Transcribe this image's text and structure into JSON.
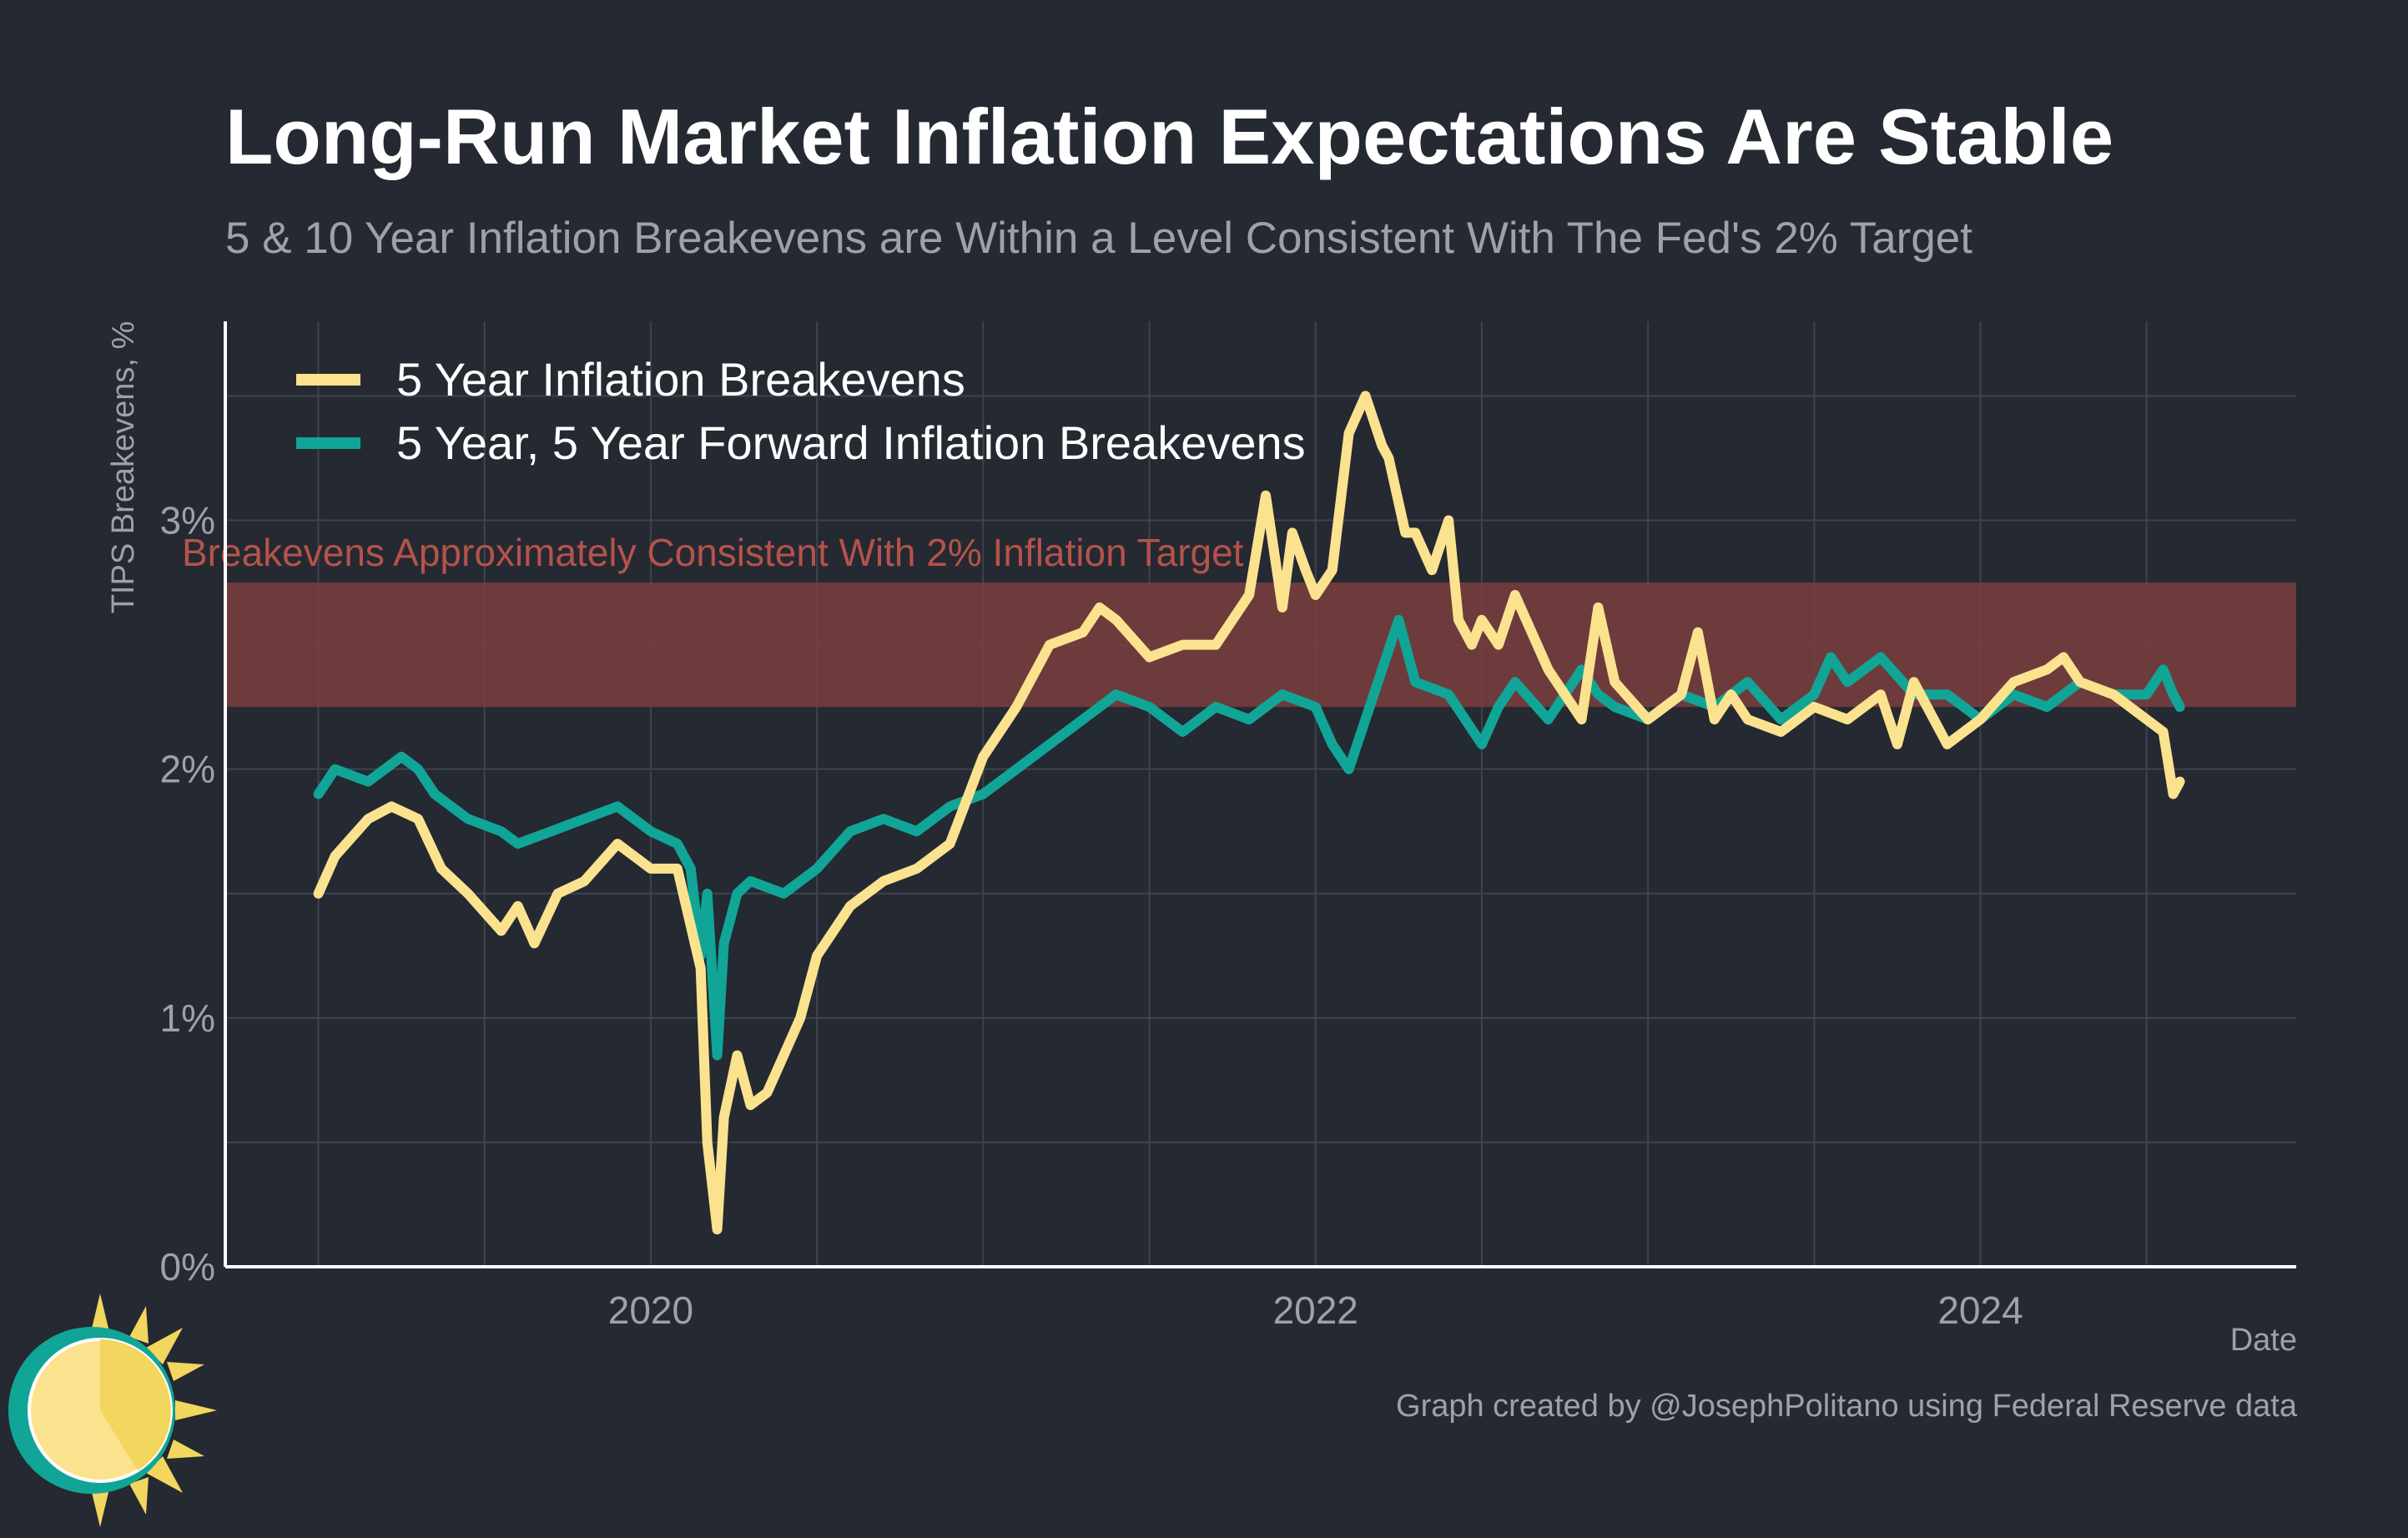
{
  "title": "Long-Run Market Inflation Expectations Are Stable",
  "subtitle": "5 & 10 Year Inflation Breakevens are Within a Level Consistent With The Fed's 2% Target",
  "credit": "Graph created by @JosephPolitano using Federal Reserve data",
  "colors": {
    "background": "#252932",
    "grid": "#3e434d",
    "axis": "#ffffff",
    "band": "#7a3e3e",
    "band_label": "#b5534a",
    "series_5y": "#fbe28e",
    "series_5y5y": "#10a597"
  },
  "chart_data": {
    "type": "line",
    "title": "Long-Run Market Inflation Expectations Are Stable",
    "xlabel": "Date",
    "ylabel": "TIPS Breakevens, %",
    "xlim": [
      2018.72,
      2024.95
    ],
    "ylim": [
      0,
      3.8
    ],
    "xticks": [
      2020,
      2022,
      2024
    ],
    "xtick_labels": [
      "2020",
      "2022",
      "2024"
    ],
    "yticks": [
      0,
      1,
      2,
      3
    ],
    "ytick_labels": [
      "0%",
      "1%",
      "2%",
      "3%"
    ],
    "grid": true,
    "legend_position": "top-left",
    "band": {
      "y_range": [
        2.25,
        2.75
      ],
      "label": "Breakevens Approximately Consistent With 2% Inflation Target"
    },
    "series": [
      {
        "name": "5 Year Inflation Breakevens",
        "x": [
          2019.0,
          2019.05,
          2019.15,
          2019.22,
          2019.3,
          2019.37,
          2019.45,
          2019.55,
          2019.6,
          2019.65,
          2019.72,
          2019.8,
          2019.9,
          2020.0,
          2020.08,
          2020.15,
          2020.17,
          2020.2,
          2020.22,
          2020.26,
          2020.3,
          2020.35,
          2020.4,
          2020.45,
          2020.5,
          2020.6,
          2020.7,
          2020.8,
          2020.9,
          2021.0,
          2021.1,
          2021.2,
          2021.3,
          2021.35,
          2021.4,
          2021.5,
          2021.6,
          2021.7,
          2021.8,
          2021.85,
          2021.9,
          2021.93,
          2021.97,
          2022.0,
          2022.05,
          2022.1,
          2022.15,
          2022.2,
          2022.22,
          2022.27,
          2022.3,
          2022.35,
          2022.4,
          2022.43,
          2022.47,
          2022.5,
          2022.55,
          2022.6,
          2022.65,
          2022.7,
          2022.8,
          2022.85,
          2022.9,
          2023.0,
          2023.1,
          2023.15,
          2023.2,
          2023.25,
          2023.3,
          2023.4,
          2023.5,
          2023.6,
          2023.7,
          2023.75,
          2023.8,
          2023.9,
          2024.0,
          2024.1,
          2024.2,
          2024.25,
          2024.3,
          2024.4,
          2024.5,
          2024.55,
          2024.58,
          2024.6
        ],
        "values": [
          1.5,
          1.65,
          1.8,
          1.85,
          1.8,
          1.6,
          1.5,
          1.35,
          1.45,
          1.3,
          1.5,
          1.55,
          1.7,
          1.6,
          1.6,
          1.2,
          0.5,
          0.15,
          0.6,
          0.85,
          0.65,
          0.7,
          0.85,
          1.0,
          1.25,
          1.45,
          1.55,
          1.6,
          1.7,
          2.05,
          2.25,
          2.5,
          2.55,
          2.65,
          2.6,
          2.45,
          2.5,
          2.5,
          2.7,
          3.1,
          2.65,
          2.95,
          2.8,
          2.7,
          2.8,
          3.35,
          3.5,
          3.3,
          3.25,
          2.95,
          2.95,
          2.8,
          3.0,
          2.6,
          2.5,
          2.6,
          2.5,
          2.7,
          2.55,
          2.4,
          2.2,
          2.65,
          2.35,
          2.2,
          2.3,
          2.55,
          2.2,
          2.3,
          2.2,
          2.15,
          2.25,
          2.2,
          2.3,
          2.1,
          2.35,
          2.1,
          2.2,
          2.35,
          2.4,
          2.45,
          2.35,
          2.3,
          2.2,
          2.15,
          1.9,
          1.95
        ]
      },
      {
        "name": "5 Year, 5 Year Forward Inflation Breakevens",
        "x": [
          2019.0,
          2019.05,
          2019.15,
          2019.25,
          2019.3,
          2019.35,
          2019.45,
          2019.55,
          2019.6,
          2019.7,
          2019.8,
          2019.9,
          2020.0,
          2020.08,
          2020.12,
          2020.15,
          2020.17,
          2020.2,
          2020.22,
          2020.26,
          2020.3,
          2020.4,
          2020.5,
          2020.6,
          2020.7,
          2020.8,
          2020.9,
          2021.0,
          2021.1,
          2021.2,
          2021.3,
          2021.4,
          2021.5,
          2021.6,
          2021.7,
          2021.8,
          2021.9,
          2022.0,
          2022.05,
          2022.1,
          2022.15,
          2022.2,
          2022.25,
          2022.3,
          2022.4,
          2022.5,
          2022.55,
          2022.6,
          2022.7,
          2022.8,
          2022.85,
          2022.9,
          2023.0,
          2023.1,
          2023.2,
          2023.3,
          2023.4,
          2023.5,
          2023.55,
          2023.6,
          2023.7,
          2023.8,
          2023.9,
          2024.0,
          2024.1,
          2024.2,
          2024.3,
          2024.4,
          2024.5,
          2024.55,
          2024.58,
          2024.6
        ],
        "values": [
          1.9,
          2.0,
          1.95,
          2.05,
          2.0,
          1.9,
          1.8,
          1.75,
          1.7,
          1.75,
          1.8,
          1.85,
          1.75,
          1.7,
          1.6,
          1.25,
          1.5,
          0.85,
          1.3,
          1.5,
          1.55,
          1.5,
          1.6,
          1.75,
          1.8,
          1.75,
          1.85,
          1.9,
          2.0,
          2.1,
          2.2,
          2.3,
          2.25,
          2.15,
          2.25,
          2.2,
          2.3,
          2.25,
          2.1,
          2.0,
          2.2,
          2.4,
          2.6,
          2.35,
          2.3,
          2.1,
          2.25,
          2.35,
          2.2,
          2.4,
          2.3,
          2.25,
          2.2,
          2.3,
          2.25,
          2.35,
          2.2,
          2.3,
          2.45,
          2.35,
          2.45,
          2.3,
          2.3,
          2.2,
          2.3,
          2.25,
          2.35,
          2.3,
          2.3,
          2.4,
          2.3,
          2.25
        ]
      }
    ]
  }
}
